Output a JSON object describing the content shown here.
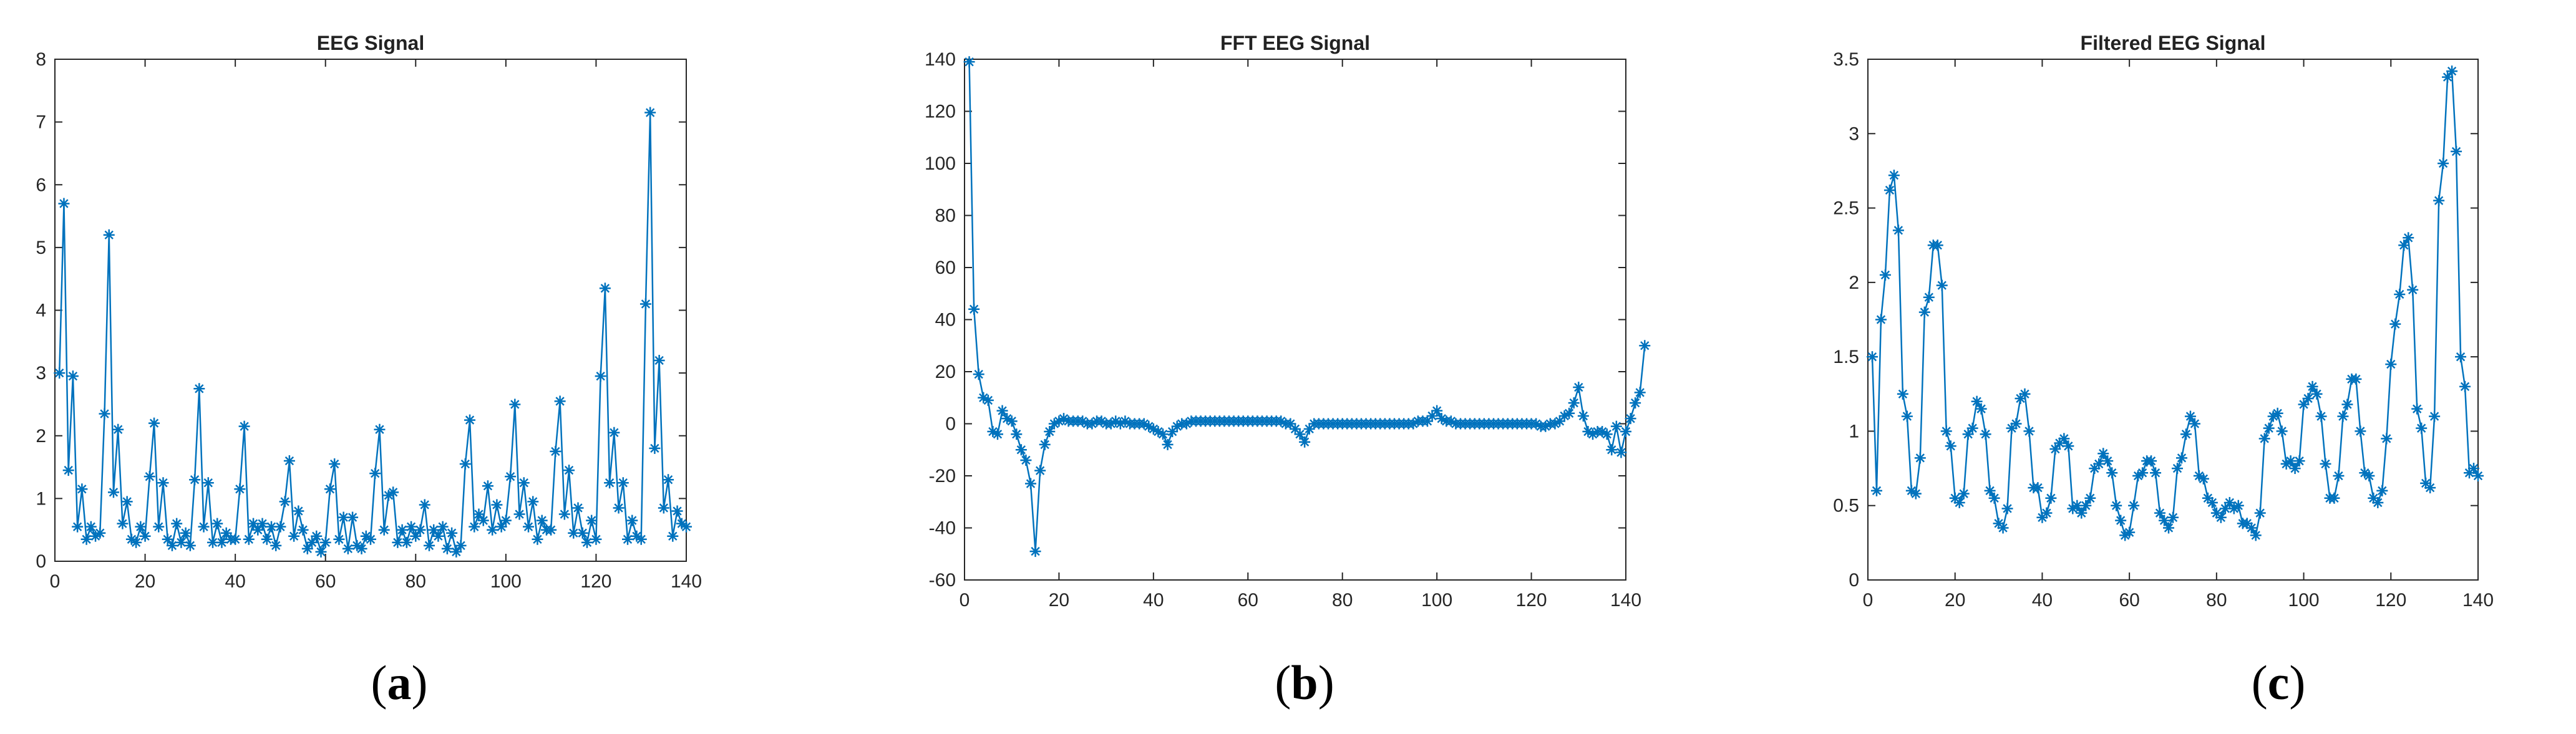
{
  "figure": {
    "panels": [
      {
        "label_open": "(",
        "label_letter": "a",
        "label_close": ")"
      },
      {
        "label_open": "(",
        "label_letter": "b",
        "label_close": ")"
      },
      {
        "label_open": "(",
        "label_letter": "c",
        "label_close": ")"
      }
    ]
  },
  "chart_data": [
    {
      "type": "line",
      "title": "EEG Signal",
      "xlabel": "",
      "ylabel": "",
      "xlim": [
        0,
        140
      ],
      "ylim": [
        0,
        8
      ],
      "xticks": [
        0,
        20,
        40,
        60,
        80,
        100,
        120,
        140
      ],
      "yticks": [
        0,
        1,
        2,
        3,
        4,
        5,
        6,
        7,
        8
      ],
      "marker": "asterisk",
      "color": "#0072BD",
      "series": [
        {
          "name": "EEG",
          "values": [
            3.0,
            5.7,
            1.45,
            2.95,
            0.55,
            1.15,
            0.35,
            0.55,
            0.4,
            0.45,
            2.35,
            5.2,
            1.1,
            2.1,
            0.6,
            0.95,
            0.35,
            0.3,
            0.55,
            0.4,
            1.35,
            2.2,
            0.55,
            1.25,
            0.35,
            0.25,
            0.6,
            0.3,
            0.45,
            0.25,
            1.3,
            2.75,
            0.55,
            1.25,
            0.3,
            0.6,
            0.3,
            0.45,
            0.35,
            0.35,
            1.15,
            2.15,
            0.35,
            0.6,
            0.5,
            0.6,
            0.35,
            0.55,
            0.25,
            0.55,
            0.95,
            1.6,
            0.4,
            0.8,
            0.5,
            0.2,
            0.3,
            0.4,
            0.15,
            0.3,
            1.15,
            1.55,
            0.35,
            0.7,
            0.2,
            0.7,
            0.25,
            0.2,
            0.4,
            0.35,
            1.4,
            2.1,
            0.5,
            1.05,
            1.1,
            0.3,
            0.5,
            0.3,
            0.55,
            0.4,
            0.5,
            0.9,
            0.25,
            0.5,
            0.4,
            0.55,
            0.2,
            0.45,
            0.15,
            0.25,
            1.55,
            2.25,
            0.55,
            0.75,
            0.65,
            1.2,
            0.5,
            0.9,
            0.55,
            0.65,
            1.35,
            2.5,
            0.75,
            1.25,
            0.55,
            0.95,
            0.35,
            0.65,
            0.5,
            0.5,
            1.75,
            2.55,
            0.75,
            1.45,
            0.45,
            0.85,
            0.45,
            0.3,
            0.65,
            0.35,
            2.95,
            4.35,
            1.25,
            2.05,
            0.85,
            1.25,
            0.35,
            0.65,
            0.4,
            0.35,
            4.1,
            7.15,
            1.8,
            3.2,
            0.85,
            1.3,
            0.4,
            0.8,
            0.6,
            0.55
          ]
        }
      ]
    },
    {
      "type": "line",
      "title": "FFT EEG Signal",
      "xlabel": "",
      "ylabel": "",
      "xlim": [
        0,
        140
      ],
      "ylim": [
        -60,
        140
      ],
      "xticks": [
        0,
        20,
        40,
        60,
        80,
        100,
        120,
        140
      ],
      "yticks": [
        -60,
        -40,
        -20,
        0,
        20,
        40,
        60,
        80,
        100,
        120,
        140
      ],
      "marker": "asterisk",
      "color": "#0072BD",
      "series": [
        {
          "name": "FFT",
          "values": [
            139,
            44,
            19,
            10,
            9,
            -3,
            -4,
            5,
            2,
            1,
            -4,
            -10,
            -14,
            -23,
            -49,
            -18,
            -8,
            -3,
            0,
            1,
            2,
            1,
            1,
            1,
            1,
            0,
            0,
            1,
            1,
            0,
            0,
            1,
            0,
            1,
            0,
            0,
            0,
            0,
            -1,
            -2,
            -3,
            -4,
            -8,
            -3,
            -1,
            0,
            0,
            1,
            1,
            1,
            1,
            1,
            1,
            1,
            1,
            1,
            1,
            1,
            1,
            1,
            1,
            1,
            1,
            1,
            1,
            1,
            1,
            0,
            0,
            -2,
            -4,
            -7,
            -2,
            0,
            0,
            0,
            0,
            0,
            0,
            0,
            0,
            0,
            0,
            0,
            0,
            0,
            0,
            0,
            0,
            0,
            0,
            0,
            0,
            0,
            0,
            1,
            1,
            1,
            3,
            5,
            2,
            1,
            1,
            0,
            0,
            0,
            0,
            0,
            0,
            0,
            0,
            0,
            0,
            0,
            0,
            0,
            0,
            0,
            0,
            0,
            0,
            -1,
            -1,
            0,
            0,
            1,
            3,
            4,
            8,
            14,
            3,
            -3,
            -4,
            -3,
            -3,
            -4,
            -10,
            -1,
            -11,
            -3,
            2,
            8,
            12,
            30
          ]
        }
      ]
    },
    {
      "type": "line",
      "title": "Filtered EEG Signal",
      "xlabel": "",
      "ylabel": "",
      "xlim": [
        0,
        140
      ],
      "ylim": [
        0,
        3.5
      ],
      "xticks": [
        0,
        20,
        40,
        60,
        80,
        100,
        120,
        140
      ],
      "yticks": [
        0,
        0.5,
        1,
        1.5,
        2,
        2.5,
        3,
        3.5
      ],
      "marker": "asterisk",
      "color": "#0072BD",
      "series": [
        {
          "name": "Filtered",
          "values": [
            1.5,
            0.6,
            1.75,
            2.05,
            2.62,
            2.72,
            2.35,
            1.25,
            1.1,
            0.6,
            0.58,
            0.82,
            1.8,
            1.9,
            2.25,
            2.25,
            1.98,
            1.0,
            0.9,
            0.55,
            0.52,
            0.58,
            0.98,
            1.02,
            1.2,
            1.15,
            0.98,
            0.6,
            0.55,
            0.38,
            0.35,
            0.48,
            1.02,
            1.05,
            1.22,
            1.25,
            1.0,
            0.62,
            0.62,
            0.42,
            0.45,
            0.55,
            0.88,
            0.92,
            0.95,
            0.9,
            0.48,
            0.5,
            0.45,
            0.5,
            0.55,
            0.75,
            0.78,
            0.85,
            0.8,
            0.72,
            0.5,
            0.4,
            0.3,
            0.32,
            0.5,
            0.7,
            0.72,
            0.8,
            0.8,
            0.72,
            0.45,
            0.4,
            0.35,
            0.42,
            0.75,
            0.82,
            0.98,
            1.1,
            1.05,
            0.7,
            0.68,
            0.55,
            0.52,
            0.45,
            0.42,
            0.48,
            0.52,
            0.48,
            0.5,
            0.38,
            0.38,
            0.35,
            0.3,
            0.45,
            0.95,
            1.02,
            1.1,
            1.12,
            1.0,
            0.78,
            0.8,
            0.75,
            0.8,
            1.18,
            1.22,
            1.3,
            1.25,
            1.1,
            0.78,
            0.55,
            0.55,
            0.7,
            1.1,
            1.18,
            1.35,
            1.35,
            1.0,
            0.72,
            0.7,
            0.55,
            0.52,
            0.6,
            0.95,
            1.45,
            1.72,
            1.92,
            2.25,
            2.3,
            1.95,
            1.15,
            1.02,
            0.65,
            0.62,
            1.1,
            2.55,
            2.8,
            3.38,
            3.42,
            2.88,
            1.5,
            1.3,
            0.72,
            0.75,
            0.7
          ]
        }
      ]
    }
  ]
}
